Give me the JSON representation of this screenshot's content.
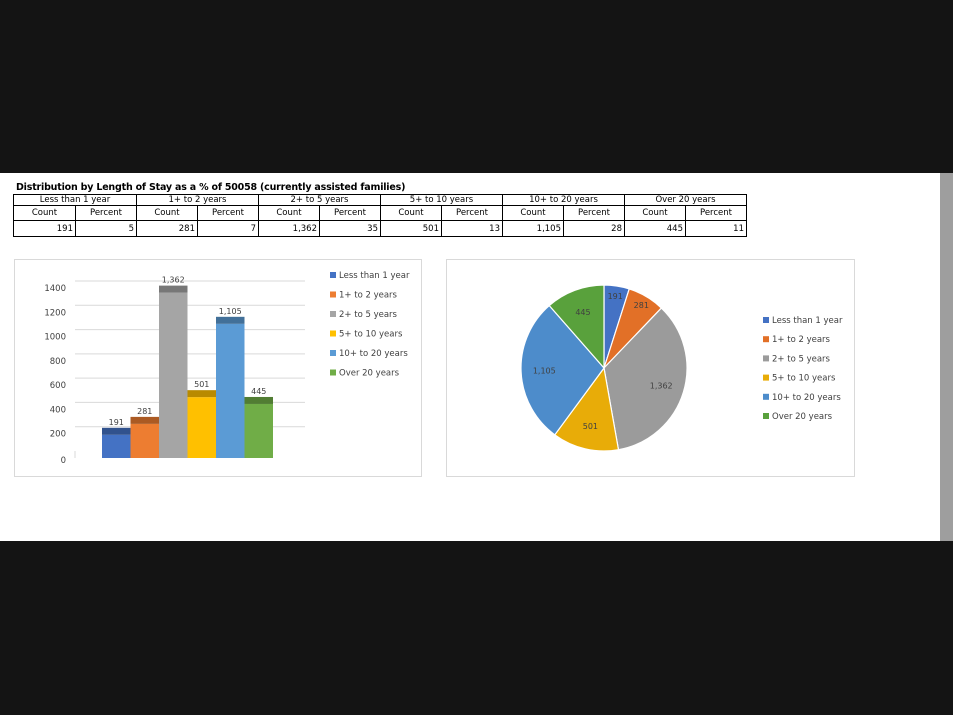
{
  "table": {
    "title": "Distribution by Length of Stay as a % of 50058 (currently assisted families)",
    "count_label": "Count",
    "percent_label": "Percent",
    "groups": [
      {
        "name": "Less than 1 year",
        "count": "191",
        "percent": "5"
      },
      {
        "name": "1+ to 2 years",
        "count": "281",
        "percent": "7"
      },
      {
        "name": "2+ to 5 years",
        "count": "1,362",
        "percent": "35"
      },
      {
        "name": "5+ to 10 years",
        "count": "501",
        "percent": "13"
      },
      {
        "name": "10+ to 20 years",
        "count": "1,105",
        "percent": "28"
      },
      {
        "name": "Over 20 years",
        "count": "445",
        "percent": "11"
      }
    ]
  },
  "colors": {
    "series": [
      "#4472c4",
      "#ed7d31",
      "#a5a5a5",
      "#ffc000",
      "#5b9bd5",
      "#70ad47"
    ],
    "pie_series": [
      "#4472c4",
      "#e27027",
      "#9b9b9b",
      "#e8ac08",
      "#4d8ccb",
      "#59a13c"
    ]
  },
  "chart_data": [
    {
      "type": "bar",
      "categories": [
        "Less than 1 year",
        "1+ to 2 years",
        "2+ to 5 years",
        "5+ to 10 years",
        "10+ to 20 years",
        "Over 20 years"
      ],
      "values": [
        191,
        281,
        1362,
        501,
        1105,
        445
      ],
      "data_labels": [
        "191",
        "281",
        "1,362",
        "501",
        "1,105",
        "445"
      ],
      "ylim": [
        0,
        1400
      ],
      "yticks": [
        "0",
        "200",
        "400",
        "600",
        "800",
        "1000",
        "1200",
        "1400"
      ],
      "grid": true,
      "legend": "right",
      "style": "3d-columns"
    },
    {
      "type": "pie",
      "categories": [
        "Less than 1 year",
        "1+ to 2 years",
        "2+ to 5 years",
        "5+ to 10 years",
        "10+ to 20 years",
        "Over 20 years"
      ],
      "values": [
        191,
        281,
        1362,
        501,
        1105,
        445
      ],
      "data_labels": [
        "191",
        "281",
        "1,362",
        "501",
        "1,105",
        "445"
      ],
      "legend": "right"
    }
  ]
}
